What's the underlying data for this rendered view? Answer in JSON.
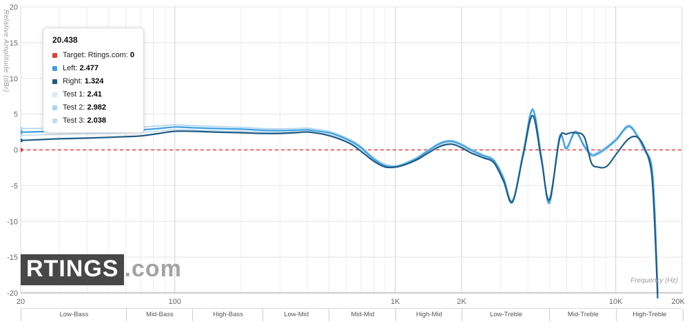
{
  "tooltip": {
    "header": "20.438",
    "rows": [
      {
        "label": "Target: Rtings.com",
        "value": "0",
        "color": "#e23e3e"
      },
      {
        "label": "Left",
        "value": "2.477",
        "color": "#3fa0e0"
      },
      {
        "label": "Right",
        "value": "1.324",
        "color": "#1e5c85"
      },
      {
        "label": "Test 1",
        "value": "2.41",
        "color": "#d7eaf8"
      },
      {
        "label": "Test 2",
        "value": "2.982",
        "color": "#aad4ee"
      },
      {
        "label": "Test 3",
        "value": "2.038",
        "color": "#c2ddf1"
      }
    ]
  },
  "watermark": {
    "main": "RTINGS",
    "suffix": ".com"
  },
  "chart_data": {
    "type": "line",
    "title": "",
    "xlabel": "Frequency (Hz)",
    "ylabel": "Relative Amplitude (dBr)",
    "x_scale": "log",
    "xlim": [
      20,
      20000
    ],
    "ylim": [
      -20,
      20
    ],
    "grid": true,
    "y_ticks": [
      20,
      15,
      10,
      5,
      0,
      -5,
      -10,
      -15,
      -20
    ],
    "x_ticks": [
      {
        "f": 20,
        "label": "20"
      },
      {
        "f": 100,
        "label": "100"
      },
      {
        "f": 1000,
        "label": "1K"
      },
      {
        "f": 2000,
        "label": "2K"
      },
      {
        "f": 10000,
        "label": "10K"
      },
      {
        "f": 20000,
        "label": "20K"
      }
    ],
    "bands": [
      {
        "label": "Low-Bass",
        "from": 20,
        "to": 60
      },
      {
        "label": "Mid-Bass",
        "from": 60,
        "to": 120
      },
      {
        "label": "High-Bass",
        "from": 120,
        "to": 250
      },
      {
        "label": "Low-Mid",
        "from": 250,
        "to": 500
      },
      {
        "label": "Mid-Mid",
        "from": 500,
        "to": 1000
      },
      {
        "label": "High-Mid",
        "from": 1000,
        "to": 2000
      },
      {
        "label": "Low-Treble",
        "from": 2000,
        "to": 5000
      },
      {
        "label": "Mid-Treble",
        "from": 5000,
        "to": 10000
      },
      {
        "label": "High-Treble",
        "from": 10000,
        "to": 20000
      }
    ],
    "frequencies": [
      20,
      25,
      30,
      40,
      50,
      60,
      70,
      85,
      100,
      120,
      150,
      200,
      250,
      300,
      350,
      400,
      450,
      500,
      560,
      630,
      700,
      800,
      900,
      1000,
      1100,
      1250,
      1400,
      1600,
      1800,
      2000,
      2200,
      2500,
      2800,
      3100,
      3400,
      3800,
      4200,
      4600,
      5000,
      5560,
      5970,
      6560,
      7200,
      7750,
      8300,
      9100,
      10100,
      11400,
      12500,
      13500,
      14500,
      15000,
      15500
    ],
    "series": [
      {
        "name": "Target: Rtings.com",
        "type": "target",
        "color": "#e23e3e",
        "constant": 0
      },
      {
        "name": "Test 1",
        "color": "#d7eaf8",
        "width": 1.6,
        "values": [
          2.41,
          2.5,
          2.55,
          2.6,
          2.65,
          2.7,
          2.75,
          2.95,
          3.15,
          3.05,
          2.95,
          2.85,
          2.7,
          2.65,
          2.7,
          2.75,
          2.55,
          2.35,
          1.85,
          1.15,
          0.25,
          -1.35,
          -2.25,
          -2.4,
          -2.05,
          -1.25,
          -0.25,
          0.85,
          1.15,
          0.65,
          -0.05,
          -0.85,
          -1.55,
          -4.1,
          -7.3,
          -0.6,
          5.5,
          -1.1,
          -7.5,
          1.7,
          0.1,
          2.4,
          0.4,
          -0.8,
          -0.6,
          0.2,
          1.4,
          3.2,
          1.9,
          -0.1,
          -2.1,
          -8.2,
          -20.0
        ]
      },
      {
        "name": "Test 2",
        "color": "#aad4ee",
        "width": 1.6,
        "values": [
          2.98,
          3.0,
          3.05,
          3.1,
          3.1,
          3.15,
          3.2,
          3.35,
          3.5,
          3.4,
          3.3,
          3.15,
          3.0,
          2.95,
          3.0,
          3.05,
          2.85,
          2.6,
          2.1,
          1.4,
          0.5,
          -1.1,
          -2.0,
          -2.2,
          -1.85,
          -1.05,
          -0.05,
          1.05,
          1.35,
          0.85,
          0.15,
          -0.65,
          -1.35,
          -3.8,
          -7.0,
          -0.3,
          5.8,
          -0.8,
          -7.2,
          2.0,
          0.4,
          2.7,
          0.7,
          -0.5,
          -0.3,
          0.5,
          1.7,
          3.5,
          2.2,
          0.2,
          -1.8,
          -7.8,
          -19.5
        ]
      },
      {
        "name": "Test 3",
        "color": "#c2ddf1",
        "width": 1.6,
        "values": [
          2.04,
          2.1,
          2.2,
          2.3,
          2.35,
          2.4,
          2.45,
          2.65,
          2.85,
          2.8,
          2.7,
          2.6,
          2.5,
          2.45,
          2.5,
          2.55,
          2.35,
          2.15,
          1.65,
          0.95,
          0.1,
          -1.5,
          -2.35,
          -2.5,
          -2.15,
          -1.35,
          -0.35,
          0.75,
          1.05,
          0.55,
          -0.15,
          -0.95,
          -1.65,
          -4.2,
          -7.4,
          -0.7,
          5.4,
          -1.2,
          -7.6,
          1.6,
          0.0,
          2.3,
          0.3,
          -0.9,
          -0.7,
          0.1,
          1.3,
          3.1,
          1.8,
          -0.2,
          -2.2,
          -8.4,
          -20.5
        ]
      },
      {
        "name": "Left",
        "color": "#3fa0e0",
        "width": 2.2,
        "values": [
          2.48,
          2.55,
          2.6,
          2.65,
          2.7,
          2.75,
          2.8,
          3.0,
          3.2,
          3.1,
          3.0,
          2.9,
          2.75,
          2.7,
          2.75,
          2.8,
          2.6,
          2.4,
          1.9,
          1.2,
          0.3,
          -1.3,
          -2.2,
          -2.35,
          -2.0,
          -1.2,
          -0.2,
          0.9,
          1.2,
          0.7,
          0.0,
          -0.8,
          -1.5,
          -4.0,
          -7.2,
          -0.5,
          5.6,
          -1.0,
          -7.4,
          1.8,
          0.2,
          2.5,
          0.5,
          -0.7,
          -0.5,
          0.3,
          1.5,
          3.3,
          2.0,
          0.0,
          -2.0,
          -8.0,
          -20.0
        ]
      },
      {
        "name": "Right",
        "color": "#1e5c85",
        "width": 2.2,
        "values": [
          1.32,
          1.45,
          1.55,
          1.65,
          1.75,
          1.85,
          1.95,
          2.3,
          2.6,
          2.6,
          2.5,
          2.4,
          2.3,
          2.3,
          2.4,
          2.5,
          2.3,
          2.0,
          1.5,
          0.8,
          -0.2,
          -1.6,
          -2.4,
          -2.4,
          -2.1,
          -1.4,
          -0.5,
          0.5,
          0.8,
          0.3,
          -0.4,
          -1.1,
          -1.8,
          -4.4,
          -7.3,
          -0.8,
          4.8,
          -1.4,
          -7.0,
          1.5,
          2.2,
          2.4,
          1.8,
          -1.8,
          -2.4,
          -2.3,
          -0.5,
          1.5,
          1.8,
          0.3,
          -3.0,
          -10.0,
          -21.0
        ]
      }
    ]
  }
}
